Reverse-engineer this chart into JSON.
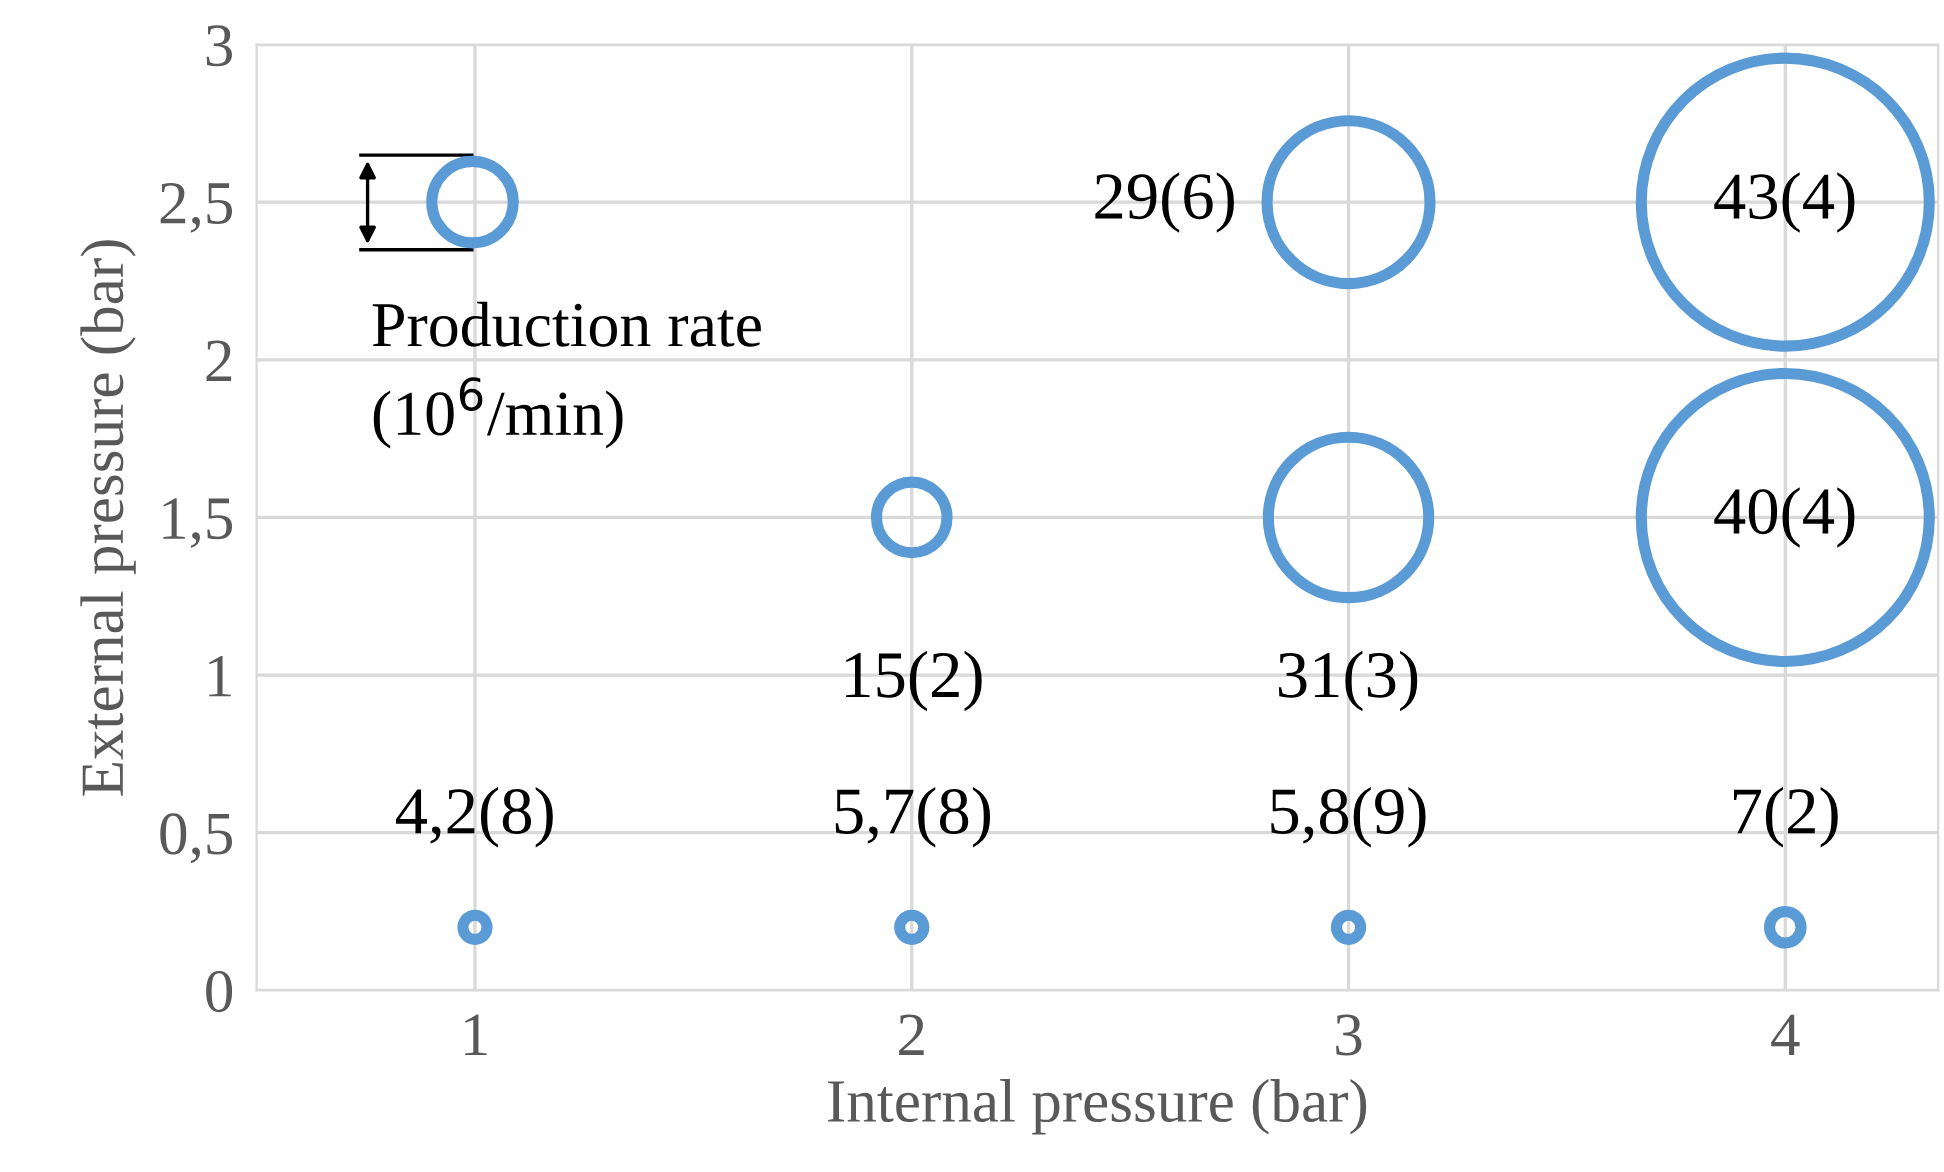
{
  "chart_data": {
    "type": "bubble",
    "xlabel": "Internal pressure (bar)",
    "ylabel": "External pressure (bar)",
    "series": [
      {
        "color": "#5b9bd5",
        "x": [
          1,
          2,
          3,
          4,
          2,
          3,
          4,
          3,
          4
        ],
        "values": [
          0.2,
          0.2,
          0.2,
          0.2,
          1.5,
          1.5,
          1.5,
          2.5,
          2.5
        ],
        "sizes": [
          0.007,
          0.007,
          0.007,
          0.012,
          0.06,
          0.31,
          1,
          0.32,
          1
        ]
      }
    ],
    "xlim": [
      0.5,
      4.35
    ],
    "xticks": [
      1,
      2,
      3,
      4
    ],
    "ylim": [
      0,
      3
    ],
    "yticks": [
      0,
      {
        "value": 0.5,
        "label": "0,5"
      },
      1,
      {
        "value": 1.5,
        "label": "1,5"
      },
      2,
      {
        "value": 2.5,
        "label": "2,5"
      },
      3
    ],
    "grid": true,
    "annotations": [
      "4,2(8)",
      "5,7(8)",
      "5,8(9)",
      "7(2)",
      "15(2)",
      "31(3)",
      "29(6)",
      "43(4)",
      "40(4)",
      "Production rate\n(10$^{6}$/min)"
    ]
  }
}
